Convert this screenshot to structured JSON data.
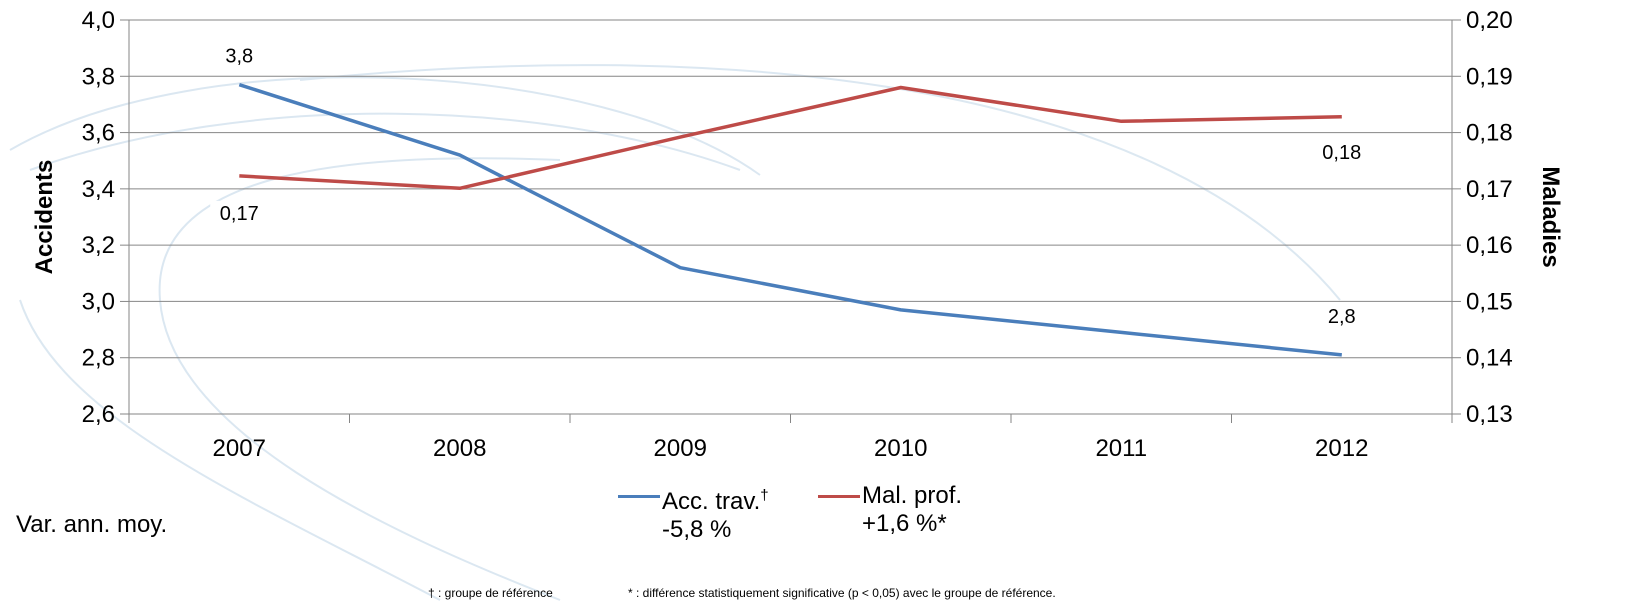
{
  "chart_data": {
    "type": "line",
    "categories": [
      "2007",
      "2008",
      "2009",
      "2010",
      "2011",
      "2012"
    ],
    "left_axis": {
      "title": "Accidents",
      "ylim": [
        2.6,
        4.0
      ],
      "ticks": [
        2.6,
        2.8,
        3.0,
        3.2,
        3.4,
        3.6,
        3.8,
        4.0
      ],
      "tick_labels": [
        "2,6",
        "2,8",
        "3,0",
        "3,2",
        "3,4",
        "3,6",
        "3,8",
        "4,0"
      ]
    },
    "right_axis": {
      "title": "Maladies",
      "ylim": [
        0.13,
        0.2
      ],
      "ticks": [
        0.13,
        0.14,
        0.15,
        0.16,
        0.17,
        0.18,
        0.19,
        0.2
      ],
      "tick_labels": [
        "0,13",
        "0,14",
        "0,15",
        "0,16",
        "0,17",
        "0,18",
        "0,19",
        "0,20"
      ]
    },
    "grid": true,
    "series": [
      {
        "name": "Acc. trav.",
        "name_marker": "†",
        "change": "-5,8 %",
        "axis": "left",
        "color": "#4a7ebb",
        "values": [
          3.77,
          3.52,
          3.12,
          2.97,
          2.89,
          2.81
        ],
        "labels": [
          {
            "index": 0,
            "text": "3,8"
          },
          {
            "index": 5,
            "text": "2,8"
          }
        ]
      },
      {
        "name": "Mal. prof.",
        "change": "+1,6 %*",
        "axis": "right",
        "color": "#be4b48",
        "values": [
          0.1723,
          0.1701,
          0.1792,
          0.188,
          0.182,
          0.1828
        ],
        "labels": [
          {
            "index": 0,
            "text": "0,17"
          },
          {
            "index": 5,
            "text": "0,18"
          }
        ]
      }
    ]
  },
  "legend": {
    "var_label": "Var. ann. moy.",
    "acc_name": "Acc. trav.",
    "acc_marker": "†",
    "acc_change": "-5,8 %",
    "mal_name": "Mal. prof.",
    "mal_change": "+1,6 %*"
  },
  "footnotes": {
    "reference": "† : groupe de référence",
    "significance": "* : différence statistiquement significative (p < 0,05) avec le groupe de référence."
  }
}
